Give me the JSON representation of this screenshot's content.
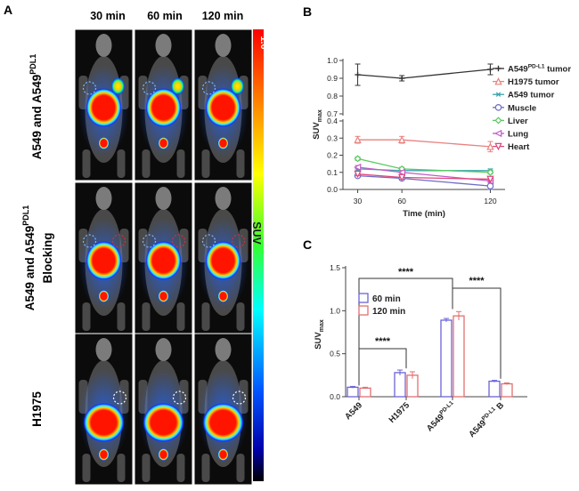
{
  "panel_a": {
    "letter": "A",
    "col_headers": [
      "30 min",
      "60 min",
      "120 min"
    ],
    "row_labels": [
      {
        "main": "A549 and A549",
        "sup": "PDL1",
        "line2": ""
      },
      {
        "main": "A549 and A549",
        "sup": "PDL1",
        "line2": "Blocking"
      },
      {
        "main": "H1975",
        "sup": "",
        "line2": ""
      }
    ],
    "colorbar": {
      "max_label": "1.0",
      "name": "SUV"
    }
  },
  "panel_b_letter": "B",
  "panel_c_letter": "C",
  "chart_data": [
    {
      "type": "line",
      "panel": "B",
      "x": [
        30,
        60,
        120
      ],
      "xlabel": "Time (min)",
      "ylabel_main": "SUV",
      "ylabel_sub": "max",
      "xticks": [
        "30",
        "60",
        "120"
      ],
      "yticks_upper": [
        "1.0",
        "0.9",
        "0.8",
        "0.7"
      ],
      "yticks_lower": [
        "0.4",
        "0.3",
        "0.2",
        "0.1",
        "0.0"
      ],
      "ylim": [
        0,
        1.0
      ],
      "axis_break": [
        0.4,
        0.7
      ],
      "series": [
        {
          "label_main": "A549",
          "label_sup": "PD-L1",
          "label_rest": " tumor",
          "color": "#333333",
          "marker": "cross",
          "values": [
            0.92,
            0.9,
            0.95
          ],
          "errors": [
            0.06,
            0.015,
            0.03
          ]
        },
        {
          "label_main": "H1975 tumor",
          "label_sup": "",
          "label_rest": "",
          "color": "#e8827f",
          "marker": "triangle",
          "values": [
            0.29,
            0.29,
            0.25
          ],
          "errors": [
            0.02,
            0.02,
            0.03
          ]
        },
        {
          "label_main": "A549 tumor",
          "label_sup": "",
          "label_rest": "",
          "color": "#39a6ad",
          "marker": "star",
          "values": [
            0.12,
            0.11,
            0.11
          ],
          "errors": [
            0.01,
            0.01,
            0.01
          ]
        },
        {
          "label_main": "Muscle",
          "label_sup": "",
          "label_rest": "",
          "color": "#6d6cc6",
          "marker": "circle",
          "values": [
            0.08,
            0.065,
            0.02
          ],
          "errors": [
            0.01,
            0.01,
            0.02
          ]
        },
        {
          "label_main": "Liver",
          "label_sup": "",
          "label_rest": "",
          "color": "#5bc95f",
          "marker": "diamond",
          "values": [
            0.18,
            0.12,
            0.1
          ],
          "errors": [
            0.01,
            0.01,
            0.01
          ]
        },
        {
          "label_main": "Lung",
          "label_sup": "",
          "label_rest": "",
          "color": "#c05bc6",
          "marker": "triangle-left",
          "values": [
            0.13,
            0.1,
            0.05
          ],
          "errors": [
            0.01,
            0.01,
            0.01
          ]
        },
        {
          "label_main": "Heart",
          "label_sup": "",
          "label_rest": "",
          "color": "#e0457a",
          "marker": "triangle-down",
          "values": [
            0.09,
            0.07,
            0.06
          ],
          "errors": [
            0.01,
            0.01,
            0.01
          ]
        }
      ]
    },
    {
      "type": "bar",
      "panel": "C",
      "categories": [
        {
          "main": "A549",
          "sup": "",
          "suffix": ""
        },
        {
          "main": "H1975",
          "sup": "",
          "suffix": ""
        },
        {
          "main": "A549",
          "sup": "PD-L1",
          "suffix": ""
        },
        {
          "main": "A549",
          "sup": "PD-L1",
          "suffix": " B"
        }
      ],
      "ylabel_main": "SUV",
      "ylabel_sub": "max",
      "ylim": [
        0,
        1.5
      ],
      "yticks": [
        "0.0",
        "0.5",
        "1.0",
        "1.5"
      ],
      "series": [
        {
          "name": "60 min",
          "color": "#6b63d6",
          "values": [
            0.11,
            0.28,
            0.89,
            0.18
          ],
          "errors": [
            0.01,
            0.03,
            0.02,
            0.01
          ]
        },
        {
          "name": "120 min",
          "color": "#e26f70",
          "values": [
            0.1,
            0.25,
            0.94,
            0.15
          ],
          "errors": [
            0.01,
            0.04,
            0.05,
            0.01
          ]
        }
      ],
      "significance": [
        {
          "label": "****",
          "from": 0,
          "to": 2
        },
        {
          "label": "****",
          "from": 0,
          "to": 1
        },
        {
          "label": "****",
          "from": 2,
          "to": 3
        }
      ]
    }
  ]
}
